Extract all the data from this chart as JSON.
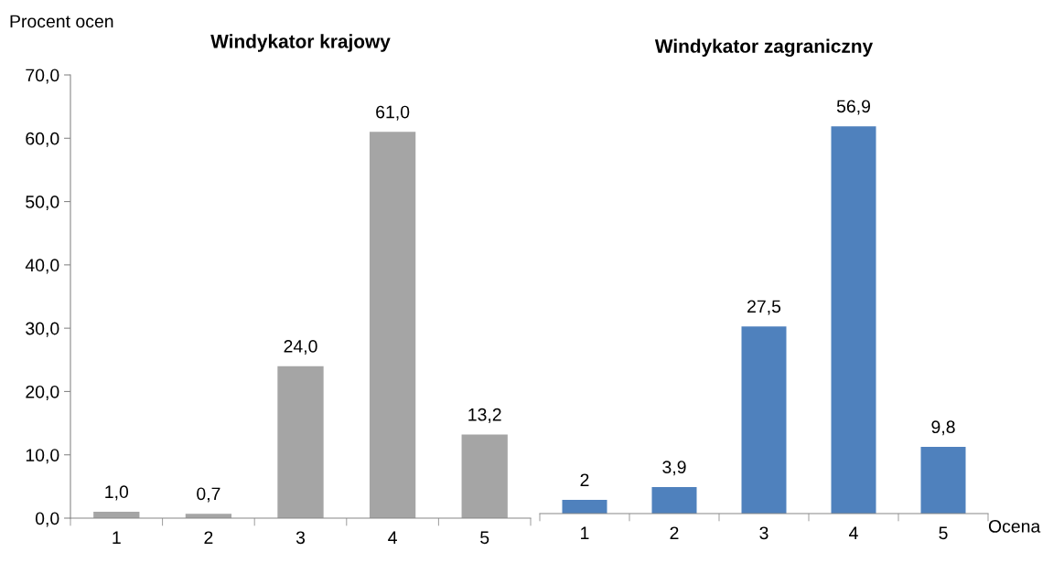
{
  "chart_data": [
    {
      "type": "bar",
      "title": "Windykator krajowy",
      "ylabel": "Procent ocen",
      "categories": [
        "1",
        "2",
        "3",
        "4",
        "5"
      ],
      "series": [
        {
          "color": "#a5a5a5",
          "values": [
            1.0,
            0.7,
            24.0,
            61.0,
            13.2
          ],
          "value_labels": [
            "1,0",
            "0,7",
            "24,0",
            "61,0",
            "13,2"
          ]
        }
      ],
      "ylim": [
        0,
        70
      ],
      "yticks": [
        {
          "value": 0,
          "label": "0,0"
        },
        {
          "value": 10,
          "label": "10,0"
        },
        {
          "value": 20,
          "label": "20,0"
        },
        {
          "value": 30,
          "label": "30,0"
        },
        {
          "value": 40,
          "label": "40,0"
        },
        {
          "value": 50,
          "label": "50,0"
        },
        {
          "value": 60,
          "label": "60,0"
        },
        {
          "value": 70,
          "label": "70,0"
        }
      ],
      "grid": false,
      "legend": false
    },
    {
      "type": "bar",
      "title": "Windykator zagraniczny",
      "xlabel": "Ocena",
      "categories": [
        "1",
        "2",
        "3",
        "4",
        "5"
      ],
      "series": [
        {
          "color": "#4f81bd",
          "values": [
            2,
            3.9,
            27.5,
            56.9,
            9.8
          ],
          "value_labels": [
            "2",
            "3,9",
            "27,5",
            "56,9",
            "9,8"
          ]
        }
      ],
      "tick_labels": "x",
      "grid": false,
      "legend": false
    }
  ]
}
